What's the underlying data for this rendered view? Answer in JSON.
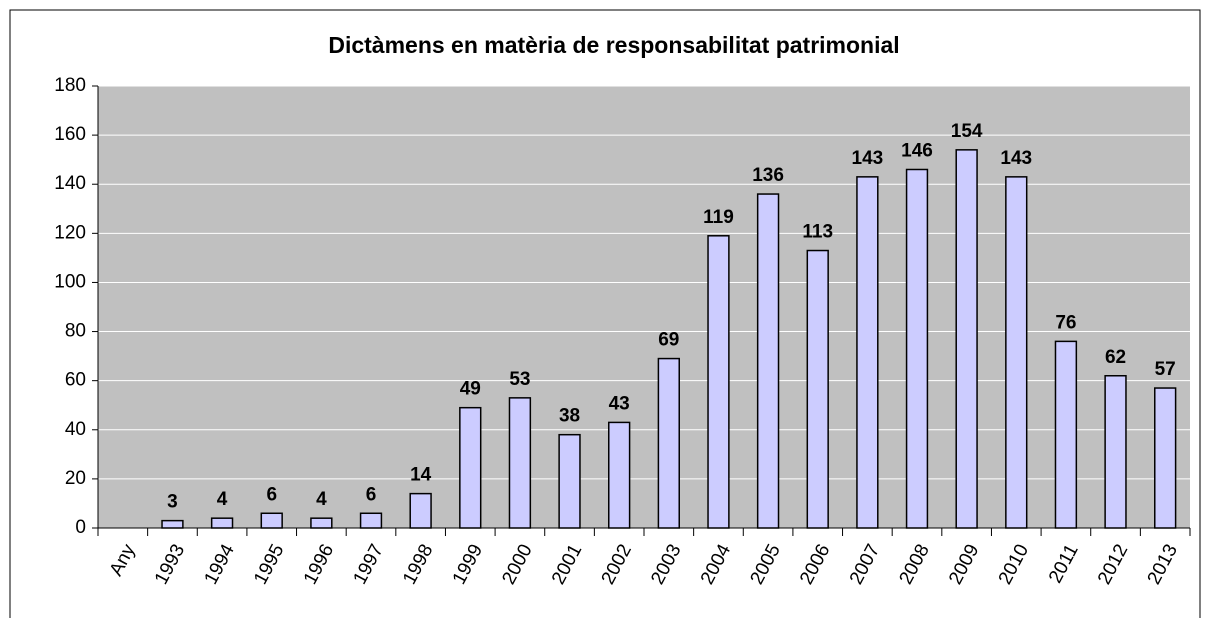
{
  "chart_data": {
    "type": "bar",
    "title": "Dictàmens en matèria de responsabilitat patrimonial",
    "categories": [
      "Any",
      "1993",
      "1994",
      "1995",
      "1996",
      "1997",
      "1998",
      "1999",
      "2000",
      "2001",
      "2002",
      "2003",
      "2004",
      "2005",
      "2006",
      "2007",
      "2008",
      "2009",
      "2010",
      "2011",
      "2012",
      "2013"
    ],
    "values": [
      null,
      3,
      4,
      6,
      4,
      6,
      14,
      49,
      53,
      38,
      43,
      69,
      119,
      136,
      113,
      143,
      146,
      154,
      143,
      76,
      62,
      57
    ],
    "color": "#ccccff",
    "ylim": [
      0,
      180
    ],
    "yticks": [
      0,
      20,
      40,
      60,
      80,
      100,
      120,
      140,
      160,
      180
    ],
    "grid": true
  }
}
